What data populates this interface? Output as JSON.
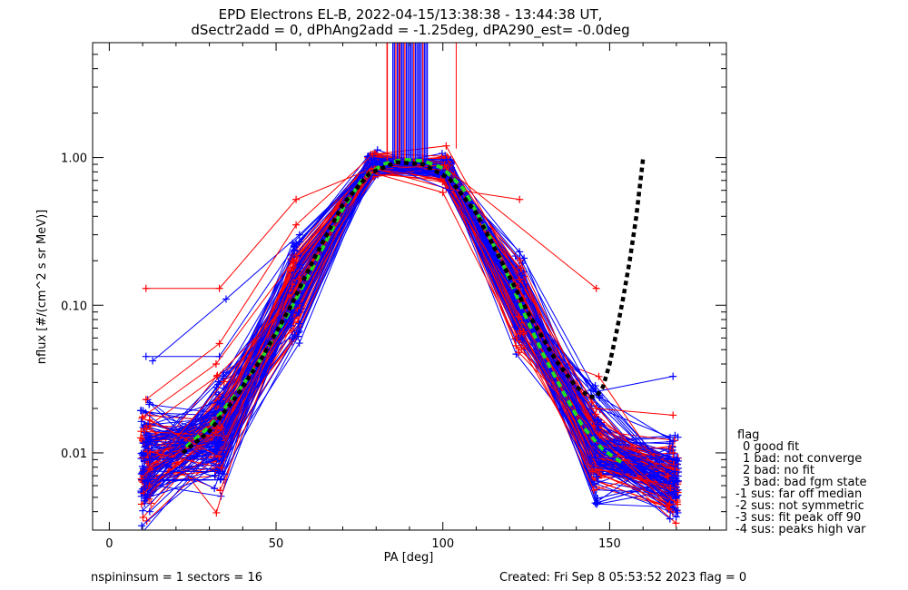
{
  "chart_data": {
    "type": "line",
    "title_line1": "EPD Electrons EL-B, 2022-04-15/13:38:38 - 13:44:38 UT,",
    "title_line2": "dSectr2add = 0, dPhAng2add = -1.25deg, dPA290_est=  -0.0deg",
    "xlabel": "PA [deg]",
    "ylabel": "nflux [#/(cm^2 s sr MeV)]",
    "xlim": [
      -5,
      185
    ],
    "ylim": [
      0.003,
      6.0
    ],
    "yscale": "log",
    "xticks": [
      0,
      50,
      100,
      150
    ],
    "xtick_labels": [
      "0",
      "50",
      "100",
      "150"
    ],
    "yticks": [
      0.01,
      0.1,
      1.0
    ],
    "ytick_labels": [
      "0.01",
      "0.10",
      "1.00"
    ],
    "grid": false,
    "colors": {
      "red": "#ff0000",
      "blue": "#0000ff",
      "fit": "#22dd22",
      "model": "#000000"
    },
    "sector_pa": [
      11,
      33,
      56,
      79,
      101,
      123,
      146,
      169
    ],
    "median_profile": [
      0.0085,
      0.013,
      0.12,
      0.9,
      0.85,
      0.1,
      0.011,
      0.0065
    ],
    "fit_curve": {
      "name": "",
      "x": [
        23,
        30,
        38,
        46,
        54,
        62,
        70,
        76,
        82,
        88,
        94,
        100,
        106,
        112,
        118,
        124,
        130,
        136,
        142,
        148,
        154
      ],
      "y": [
        0.011,
        0.015,
        0.025,
        0.045,
        0.09,
        0.2,
        0.45,
        0.72,
        0.9,
        0.97,
        0.95,
        0.85,
        0.62,
        0.36,
        0.19,
        0.092,
        0.047,
        0.026,
        0.015,
        0.0105,
        0.0085
      ]
    },
    "model_curve": {
      "name": "",
      "x": [
        22,
        30,
        38,
        46,
        54,
        62,
        70,
        78,
        86,
        94,
        102,
        110,
        118,
        126,
        134,
        140,
        144,
        146,
        148,
        150,
        152,
        154,
        156,
        158,
        160
      ],
      "y": [
        0.01,
        0.014,
        0.024,
        0.045,
        0.095,
        0.22,
        0.48,
        0.78,
        0.93,
        0.9,
        0.72,
        0.42,
        0.19,
        0.085,
        0.042,
        0.028,
        0.024,
        0.024,
        0.028,
        0.04,
        0.065,
        0.11,
        0.2,
        0.4,
        0.98
      ]
    },
    "example_series": [
      {
        "color": "red",
        "x": [
          11,
          33,
          56,
          79,
          101,
          123
        ],
        "y": [
          0.13,
          0.13,
          0.52,
          0.85,
          0.62,
          0.52
        ]
      },
      {
        "color": "red",
        "x": [
          101,
          146
        ],
        "y": [
          0.85,
          0.13
        ]
      },
      {
        "color": "blue",
        "x": [
          11,
          33,
          56,
          79,
          101,
          123,
          146,
          169
        ],
        "y": [
          0.045,
          0.045,
          0.26,
          0.9,
          0.75,
          0.23,
          0.026,
          0.033
        ]
      },
      {
        "color": "blue",
        "x": [
          13,
          35,
          57,
          80,
          102,
          124,
          147,
          169
        ],
        "y": [
          0.042,
          0.11,
          0.3,
          0.95,
          0.6,
          0.1,
          0.024,
          0.012
        ]
      },
      {
        "color": "red",
        "x": [
          11,
          33,
          56,
          79,
          101,
          123,
          146,
          169
        ],
        "y": [
          0.023,
          0.055,
          0.35,
          1.05,
          1.2,
          0.15,
          0.02,
          0.018
        ]
      },
      {
        "color": "red",
        "x": [
          10,
          32,
          55,
          78,
          100,
          122,
          145,
          168
        ],
        "y": [
          0.0175,
          0.04,
          0.2,
          0.8,
          0.58,
          0.06,
          0.0075,
          0.0045
        ]
      }
    ]
  },
  "legend": {
    "title": "flag",
    "items": [
      "0 good fit",
      "1 bad: not converge",
      "2 bad: no fit",
      "3 bad: bad fgm state",
      "-1 sus: far off median",
      "-2 sus: not symmetric",
      "-3 sus: fit peak off 90",
      "-4 sus: peaks high var"
    ]
  },
  "footer": {
    "left": "nspininsum =  1  sectors = 16",
    "right": "Created: Fri Sep  8 05:53:52 2023   flag = 0"
  }
}
